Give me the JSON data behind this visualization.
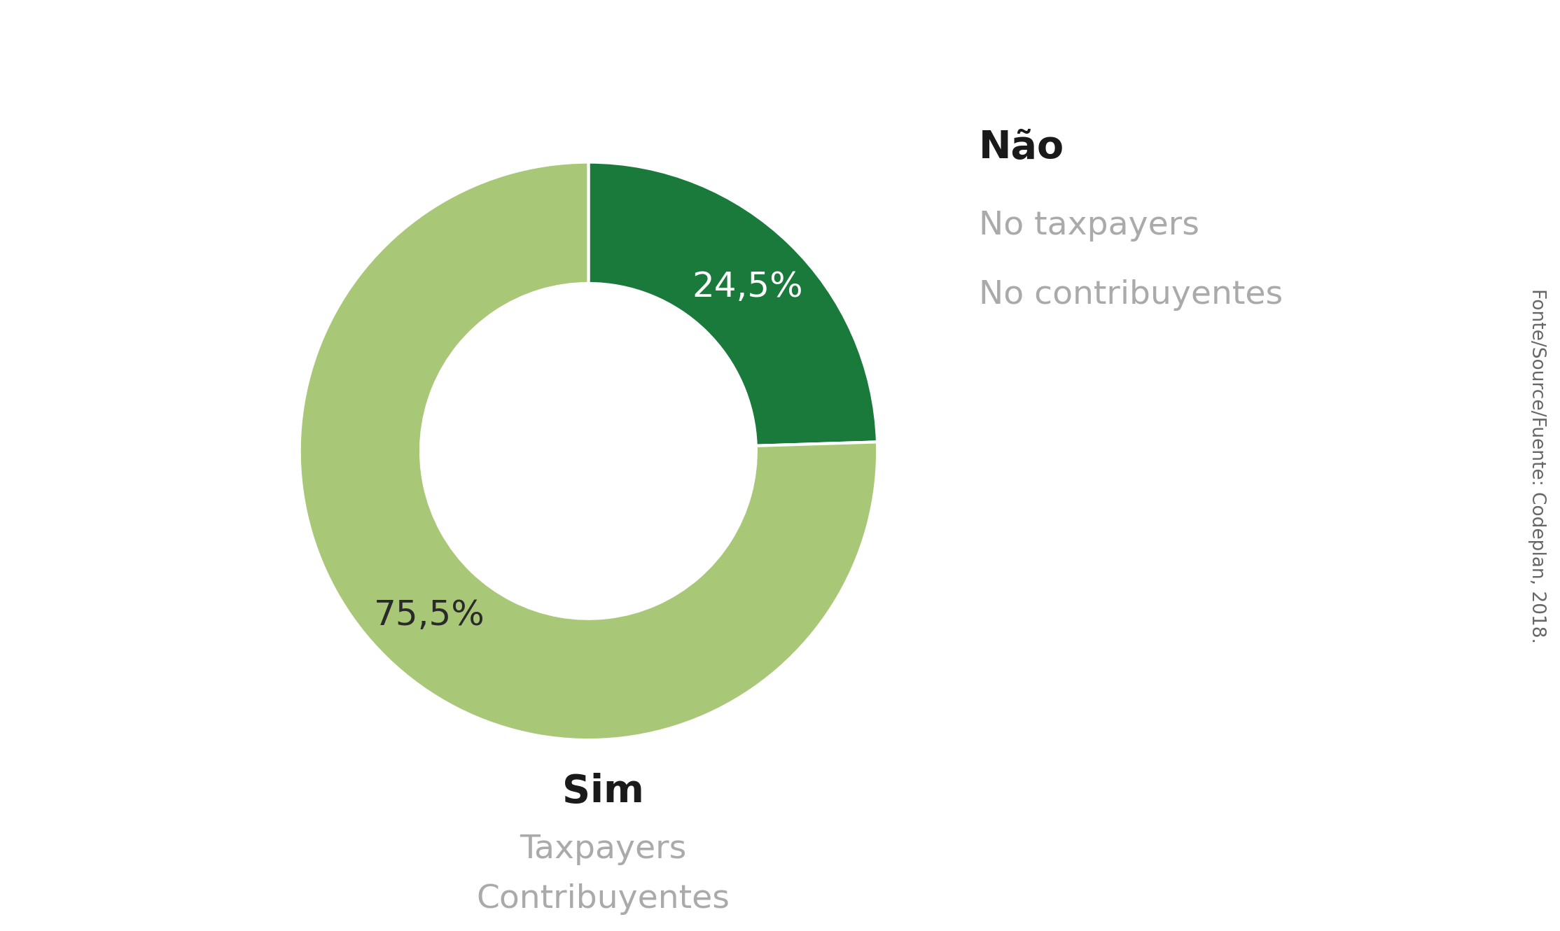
{
  "values": [
    24.5,
    75.5
  ],
  "colors": [
    "#1a7a3c",
    "#a8c878"
  ],
  "labels_pct": [
    "24,5%",
    "75,5%"
  ],
  "label_sim_title": "Sim",
  "label_sim_sub1": "Taxpayers",
  "label_sim_sub2": "Contribuyentes",
  "label_nao_title": "Não",
  "label_nao_sub1": "No taxpayers",
  "label_nao_sub2": "No contribuyentes",
  "source_text": "Fonte/Source/Fuente: Codeplan, 2018.",
  "background_color": "#ffffff",
  "wedge_edge_color": "#ffffff",
  "pct_color_nao": "#ffffff",
  "pct_color_sim": "#2a2a2a",
  "title_color": "#1a1a1a",
  "sub_color": "#aaaaaa",
  "donut_width": 0.42,
  "start_angle": 90
}
